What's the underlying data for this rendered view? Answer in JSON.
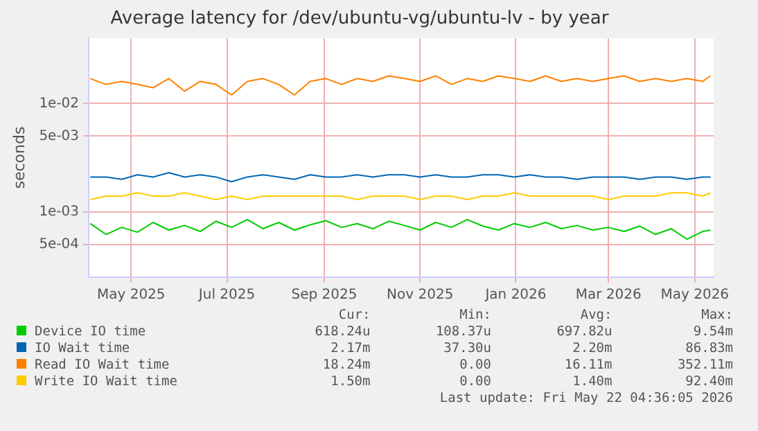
{
  "chart_data": {
    "type": "line",
    "title": "Average latency for /dev/ubuntu-vg/ubuntu-lv - by year",
    "ylabel": "seconds",
    "log": "y",
    "grid": true,
    "legend": "bottom",
    "marker": "none",
    "line_style": "solid",
    "x": [
      "2025-04-20",
      "2025-04-30",
      "2025-05-10",
      "2025-05-20",
      "2025-05-30",
      "2025-06-09",
      "2025-06-19",
      "2025-06-29",
      "2025-07-09",
      "2025-07-19",
      "2025-07-29",
      "2025-08-08",
      "2025-08-18",
      "2025-08-28",
      "2025-09-07",
      "2025-09-17",
      "2025-09-27",
      "2025-10-07",
      "2025-10-17",
      "2025-10-27",
      "2025-11-06",
      "2025-11-16",
      "2025-11-26",
      "2025-12-06",
      "2025-12-16",
      "2025-12-26",
      "2026-01-05",
      "2026-01-15",
      "2026-01-25",
      "2026-02-04",
      "2026-02-14",
      "2026-02-24",
      "2026-03-06",
      "2026-03-16",
      "2026-03-26",
      "2026-04-05",
      "2026-04-15",
      "2026-04-25",
      "2026-05-05",
      "2026-05-15",
      "2026-05-20"
    ],
    "xlim": [
      "2025-04-19",
      "2026-05-22"
    ],
    "xticks": [
      {
        "value": "2025-05-16",
        "label": "May 2025"
      },
      {
        "value": "2025-07-16",
        "label": "Jul 2025"
      },
      {
        "value": "2025-09-16",
        "label": "Sep 2025"
      },
      {
        "value": "2025-11-16",
        "label": "Nov 2025"
      },
      {
        "value": "2026-01-16",
        "label": "Jan 2026"
      },
      {
        "value": "2026-03-16",
        "label": "Mar 2026"
      },
      {
        "value": "2026-05-10",
        "label": "May 2026"
      }
    ],
    "ylim": [
      0.00025,
      0.04
    ],
    "yticks": [
      {
        "value": 0.0005,
        "label": "5e-04"
      },
      {
        "value": 0.001,
        "label": "1e-03"
      },
      {
        "value": 0.005,
        "label": "5e-03"
      },
      {
        "value": 0.01,
        "label": "1e-02"
      }
    ],
    "series": [
      {
        "name": "Device IO time",
        "color": "#00cc00",
        "values": [
          0.00078,
          0.00062,
          0.00072,
          0.00065,
          0.0008,
          0.00068,
          0.00075,
          0.00066,
          0.00082,
          0.00072,
          0.00085,
          0.0007,
          0.0008,
          0.00068,
          0.00076,
          0.00083,
          0.00072,
          0.00078,
          0.0007,
          0.00082,
          0.00075,
          0.00068,
          0.0008,
          0.00072,
          0.00085,
          0.00074,
          0.00068,
          0.00078,
          0.00072,
          0.0008,
          0.0007,
          0.00075,
          0.00068,
          0.00072,
          0.00066,
          0.00074,
          0.00062,
          0.0007,
          0.00056,
          0.00066,
          0.00068
        ]
      },
      {
        "name": "IO Wait time",
        "color": "#0066b3",
        "values": [
          0.0021,
          0.0021,
          0.002,
          0.0022,
          0.0021,
          0.0023,
          0.0021,
          0.0022,
          0.0021,
          0.0019,
          0.0021,
          0.0022,
          0.0021,
          0.002,
          0.0022,
          0.0021,
          0.0021,
          0.0022,
          0.0021,
          0.0022,
          0.0022,
          0.0021,
          0.0022,
          0.0021,
          0.0021,
          0.0022,
          0.0022,
          0.0021,
          0.0022,
          0.0021,
          0.0021,
          0.002,
          0.0021,
          0.0021,
          0.0021,
          0.002,
          0.0021,
          0.0021,
          0.002,
          0.0021,
          0.0021
        ]
      },
      {
        "name": "Read IO Wait time",
        "color": "#ff8000",
        "values": [
          0.017,
          0.015,
          0.016,
          0.015,
          0.014,
          0.017,
          0.013,
          0.016,
          0.015,
          0.012,
          0.016,
          0.017,
          0.015,
          0.012,
          0.016,
          0.017,
          0.015,
          0.017,
          0.016,
          0.018,
          0.017,
          0.016,
          0.018,
          0.015,
          0.017,
          0.016,
          0.018,
          0.017,
          0.016,
          0.018,
          0.016,
          0.017,
          0.016,
          0.017,
          0.018,
          0.016,
          0.017,
          0.016,
          0.017,
          0.016,
          0.018
        ]
      },
      {
        "name": "Write IO Wait time",
        "color": "#ffcc00",
        "values": [
          0.0013,
          0.0014,
          0.0014,
          0.0015,
          0.0014,
          0.0014,
          0.0015,
          0.0014,
          0.0013,
          0.0014,
          0.0013,
          0.0014,
          0.0014,
          0.0014,
          0.0014,
          0.0014,
          0.0014,
          0.0013,
          0.0014,
          0.0014,
          0.0014,
          0.0013,
          0.0014,
          0.0014,
          0.0013,
          0.0014,
          0.0014,
          0.0015,
          0.0014,
          0.0014,
          0.0014,
          0.0014,
          0.0014,
          0.0013,
          0.0014,
          0.0014,
          0.0014,
          0.0015,
          0.0015,
          0.0014,
          0.0015
        ]
      }
    ],
    "annotations": [
      "Cur:",
      "Min:",
      "Avg:",
      "Max:",
      "618.24u",
      "108.37u",
      "697.82u",
      "9.54m",
      "2.17m",
      "37.30u",
      "2.20m",
      "86.83m",
      "18.24m",
      "0.00",
      "16.11m",
      "352.11m",
      "1.50m",
      "0.00",
      "1.40m",
      "92.40m",
      "Last update: Fri May 22 04:36:05 2026"
    ]
  }
}
